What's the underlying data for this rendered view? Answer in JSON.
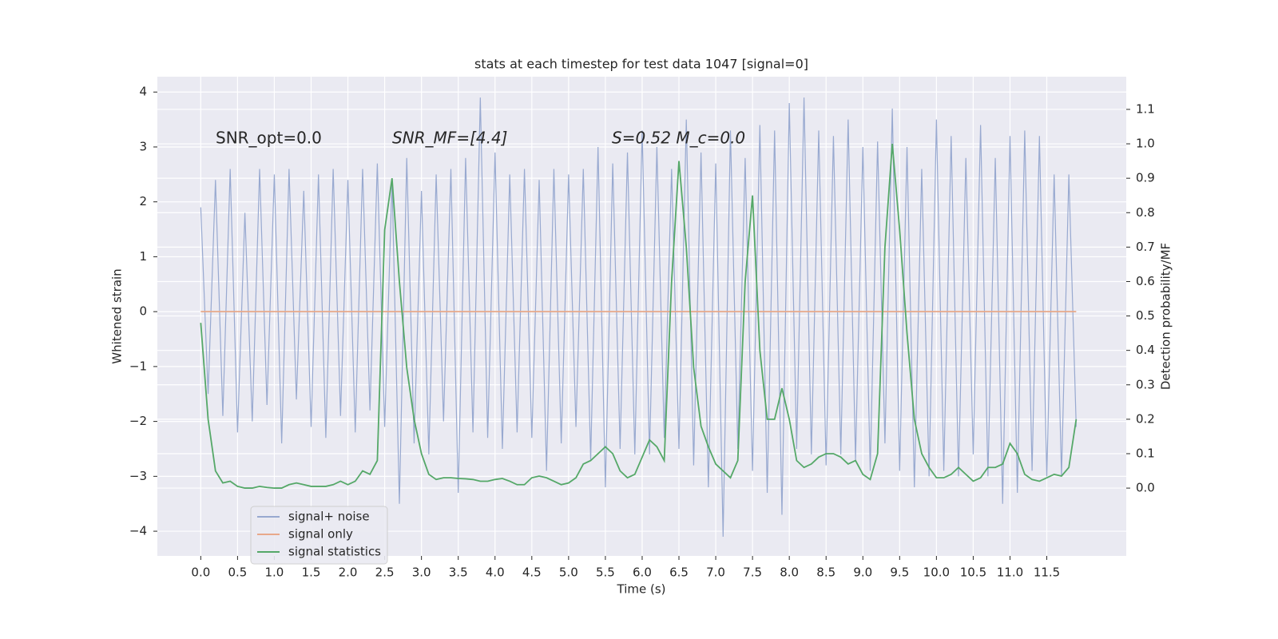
{
  "chart_data": {
    "type": "line",
    "title": "stats at each timestep for test data 1047 [signal=0]",
    "xlabel": "Time (s)",
    "ylabel": "Whitened strain",
    "y2label": "Detection probability/MF",
    "annotations": [
      "SNR_opt=0.0",
      "SNR_MF=[4.4]",
      "S=0.52   M_c=0.0"
    ],
    "xlim": [
      -0.59,
      12.58
    ],
    "ylim": [
      -4.45,
      4.28
    ],
    "y2lim": [
      -0.197,
      1.195
    ],
    "xticks": [
      {
        "value": 0,
        "label": "0.0"
      },
      0.5,
      {
        "value": 1,
        "label": "1.0"
      },
      1.5,
      {
        "value": 2,
        "label": "2.0"
      },
      2.5,
      {
        "value": 3,
        "label": "3.0"
      },
      3.5,
      {
        "value": 4,
        "label": "4.0"
      },
      4.5,
      {
        "value": 5,
        "label": "5.0"
      },
      5.5,
      {
        "value": 6,
        "label": "6.0"
      },
      6.5,
      {
        "value": 7,
        "label": "7.0"
      },
      7.5,
      {
        "value": 8,
        "label": "8.0"
      },
      8.5,
      {
        "value": 9,
        "label": "9.0"
      },
      9.5,
      {
        "value": 10,
        "label": "10.0"
      },
      10.5,
      {
        "value": 11,
        "label": "11.0"
      },
      11.5
    ],
    "yticks": [
      {
        "value": -4,
        "label": "−4"
      },
      {
        "value": -3,
        "label": "−3"
      },
      {
        "value": -2,
        "label": "−2"
      },
      {
        "value": -1,
        "label": "−1"
      },
      0,
      1,
      2,
      3,
      4
    ],
    "y2ticks": [
      {
        "value": 0,
        "label": "0.0"
      },
      0.1,
      0.2,
      0.3,
      0.4,
      0.5,
      0.6,
      0.7,
      0.8,
      0.9,
      {
        "value": 1,
        "label": "1.0"
      },
      1.1
    ],
    "grid": true,
    "legend": "lower left",
    "x": [
      0,
      0.1,
      0.2,
      0.3,
      0.4,
      0.5,
      0.6,
      0.7,
      0.8,
      0.9,
      1,
      1.1,
      1.2,
      1.3,
      1.4,
      1.5,
      1.6,
      1.7,
      1.8,
      1.9,
      2,
      2.1,
      2.2,
      2.3,
      2.4,
      2.5,
      2.6,
      2.7,
      2.8,
      2.9,
      3,
      3.1,
      3.2,
      3.3,
      3.4,
      3.5,
      3.6,
      3.7,
      3.8,
      3.9,
      4,
      4.1,
      4.2,
      4.3,
      4.4,
      4.5,
      4.6,
      4.7,
      4.8,
      4.9,
      5,
      5.1,
      5.2,
      5.3,
      5.4,
      5.5,
      5.6,
      5.7,
      5.8,
      5.9,
      6,
      6.1,
      6.2,
      6.3,
      6.4,
      6.5,
      6.6,
      6.7,
      6.8,
      6.9,
      7,
      7.1,
      7.2,
      7.3,
      7.4,
      7.5,
      7.6,
      7.7,
      7.8,
      7.9,
      8,
      8.1,
      8.2,
      8.3,
      8.4,
      8.5,
      8.6,
      8.7,
      8.8,
      8.9,
      9,
      9.1,
      9.2,
      9.3,
      9.4,
      9.5,
      9.6,
      9.7,
      9.8,
      9.9,
      10,
      10.1,
      10.2,
      10.3,
      10.4,
      10.5,
      10.6,
      10.7,
      10.8,
      10.9,
      11,
      11.1,
      11.2,
      11.3,
      11.4,
      11.5,
      11.6,
      11.7,
      11.8,
      11.9
    ],
    "series": [
      {
        "name": "signal+ noise",
        "color": "#98a9d0",
        "values": [
          1.9,
          -1.5,
          2.4,
          -1.9,
          2.6,
          -2.2,
          1.8,
          -2.0,
          2.6,
          -1.7,
          2.5,
          -2.4,
          2.6,
          -1.6,
          2.2,
          -2.1,
          2.5,
          -2.3,
          2.6,
          -1.9,
          2.4,
          -2.2,
          2.6,
          -1.8,
          2.7,
          -2.1,
          2.4,
          -3.5,
          2.8,
          -2.4,
          2.2,
          -2.6,
          2.5,
          -2.0,
          2.6,
          -3.3,
          2.8,
          -2.2,
          3.9,
          -2.3,
          2.9,
          -2.5,
          2.5,
          -2.2,
          2.6,
          -2.3,
          2.4,
          -2.9,
          2.6,
          -2.4,
          2.5,
          -2.1,
          2.6,
          -2.7,
          3.0,
          -3.2,
          2.7,
          -2.5,
          2.9,
          -2.6,
          3.3,
          -2.6,
          3.0,
          -2.3,
          2.6,
          -2.5,
          3.5,
          -2.8,
          2.9,
          -3.2,
          2.7,
          -4.1,
          3.3,
          -2.5,
          2.8,
          -2.9,
          3.4,
          -3.3,
          3.3,
          -3.7,
          3.8,
          -2.5,
          3.9,
          -2.6,
          3.3,
          -2.8,
          3.2,
          -2.6,
          3.5,
          -2.7,
          3.0,
          -2.9,
          3.1,
          -2.4,
          3.7,
          -2.9,
          3.0,
          -3.2,
          2.6,
          -3.0,
          3.5,
          -2.9,
          3.2,
          -3.0,
          2.8,
          -2.6,
          3.4,
          -3.0,
          2.8,
          -3.5,
          3.2,
          -3.3,
          3.3,
          -2.9,
          3.2,
          -3.0,
          2.5,
          -3.0,
          2.5,
          -2.1
        ]
      },
      {
        "name": "signal only",
        "color": "#e8a98a",
        "values": [
          0,
          0,
          0,
          0,
          0,
          0,
          0,
          0,
          0,
          0,
          0,
          0,
          0,
          0,
          0,
          0,
          0,
          0,
          0,
          0,
          0,
          0,
          0,
          0,
          0,
          0,
          0,
          0,
          0,
          0,
          0,
          0,
          0,
          0,
          0,
          0,
          0,
          0,
          0,
          0,
          0,
          0,
          0,
          0,
          0,
          0,
          0,
          0,
          0,
          0,
          0,
          0,
          0,
          0,
          0,
          0,
          0,
          0,
          0,
          0,
          0,
          0,
          0,
          0,
          0,
          0,
          0,
          0,
          0,
          0,
          0,
          0,
          0,
          0,
          0,
          0,
          0,
          0,
          0,
          0,
          0,
          0,
          0,
          0,
          0,
          0,
          0,
          0,
          0,
          0,
          0,
          0,
          0,
          0,
          0,
          0,
          0,
          0,
          0,
          0,
          0,
          0,
          0,
          0,
          0,
          0,
          0,
          0,
          0,
          0,
          0,
          0,
          0,
          0,
          0,
          0,
          0,
          0,
          0,
          0
        ]
      },
      {
        "name": "signal statistics",
        "color": "#55a868",
        "axis": "y2",
        "values": [
          0.48,
          0.2,
          0.05,
          0.015,
          0.02,
          0.005,
          0.0,
          0.0,
          0.005,
          0.002,
          0.0,
          0.0,
          0.01,
          0.015,
          0.01,
          0.005,
          0.005,
          0.005,
          0.01,
          0.02,
          0.01,
          0.02,
          0.05,
          0.04,
          0.08,
          0.75,
          0.9,
          0.6,
          0.35,
          0.2,
          0.1,
          0.04,
          0.025,
          0.03,
          0.03,
          0.028,
          0.027,
          0.025,
          0.02,
          0.02,
          0.025,
          0.028,
          0.02,
          0.01,
          0.01,
          0.03,
          0.035,
          0.03,
          0.02,
          0.01,
          0.015,
          0.03,
          0.07,
          0.08,
          0.1,
          0.12,
          0.1,
          0.05,
          0.03,
          0.04,
          0.09,
          0.14,
          0.12,
          0.08,
          0.6,
          0.95,
          0.7,
          0.35,
          0.18,
          0.12,
          0.07,
          0.05,
          0.03,
          0.08,
          0.6,
          0.85,
          0.4,
          0.2,
          0.2,
          0.29,
          0.2,
          0.08,
          0.06,
          0.07,
          0.09,
          0.1,
          0.1,
          0.09,
          0.07,
          0.08,
          0.04,
          0.025,
          0.1,
          0.7,
          1.0,
          0.75,
          0.45,
          0.2,
          0.1,
          0.06,
          0.03,
          0.03,
          0.04,
          0.06,
          0.04,
          0.02,
          0.03,
          0.06,
          0.06,
          0.07,
          0.13,
          0.1,
          0.04,
          0.025,
          0.02,
          0.03,
          0.04,
          0.035,
          0.06,
          0.2
        ]
      }
    ]
  }
}
